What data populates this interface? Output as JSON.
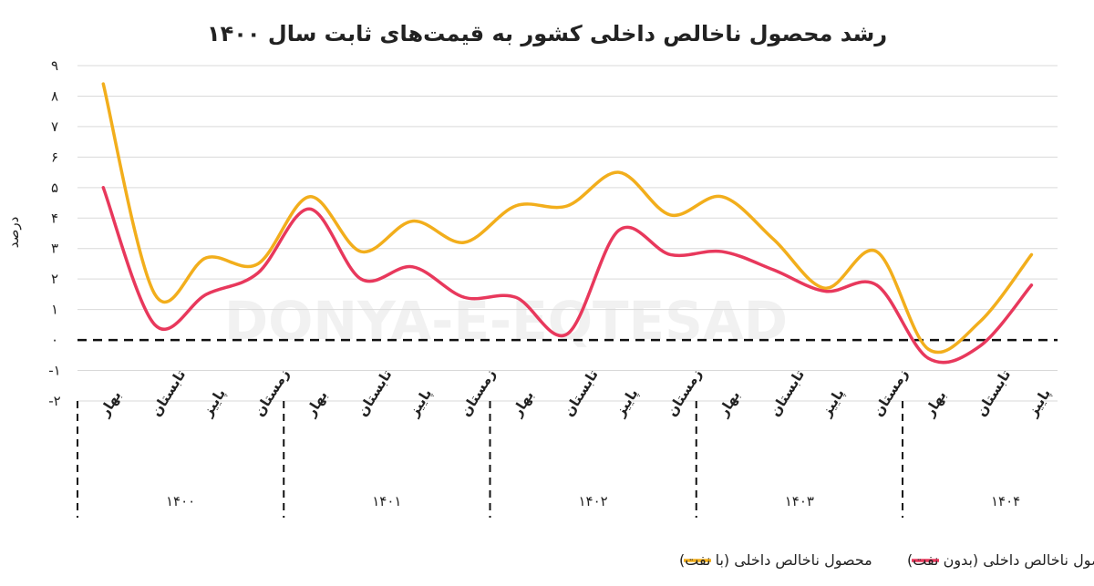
{
  "chart_data": {
    "type": "line",
    "title": "رشد محصول ناخالص داخلی کشور به قیمت‌های ثابت سال ۱۴۰۰",
    "ylabel": "درصد",
    "ylim": [
      -2,
      9
    ],
    "yticks": [
      -2,
      -1,
      0,
      1,
      2,
      3,
      4,
      5,
      6,
      7,
      8,
      9
    ],
    "ytick_labels": [
      "-۲",
      "-۱",
      "۰",
      "۱",
      "۲",
      "۳",
      "۴",
      "۵",
      "۶",
      "۷",
      "۸",
      "۹"
    ],
    "grid": true,
    "zero_line": "dashed",
    "legend_position": "bottom",
    "watermark": "DONYA-E-EQTESAD",
    "groups": [
      {
        "year": "۱۴۰۰",
        "quarters": [
          "بهار",
          "تابستان",
          "پاییز",
          "زمستان"
        ]
      },
      {
        "year": "۱۴۰۱",
        "quarters": [
          "بهار",
          "تابستان",
          "پاییز",
          "زمستان"
        ]
      },
      {
        "year": "۱۴۰۲",
        "quarters": [
          "بهار",
          "تابستان",
          "پاییز",
          "زمستان"
        ]
      },
      {
        "year": "۱۴۰۳",
        "quarters": [
          "بهار",
          "تابستان",
          "پاییز",
          "زمستان"
        ]
      },
      {
        "year": "۱۴۰۴",
        "quarters": [
          "بهار",
          "تابستان",
          "پاییز"
        ]
      }
    ],
    "series": [
      {
        "name": "محصول ناخالص داخلی (با نفت)",
        "color": "#F2AE1C",
        "values": [
          8.4,
          1.5,
          2.7,
          2.5,
          4.7,
          2.9,
          3.9,
          3.2,
          4.4,
          4.4,
          5.5,
          4.1,
          4.7,
          3.3,
          1.7,
          2.9,
          -0.3,
          0.6,
          2.8
        ]
      },
      {
        "name": "محصول ناخالص داخلی (بدون نفت)",
        "color": "#E8385C",
        "values": [
          5.0,
          0.5,
          1.5,
          2.2,
          4.3,
          2.0,
          2.4,
          1.4,
          1.4,
          0.2,
          3.6,
          2.8,
          2.9,
          2.3,
          1.6,
          1.8,
          -0.6,
          -0.2,
          1.8
        ]
      }
    ]
  }
}
